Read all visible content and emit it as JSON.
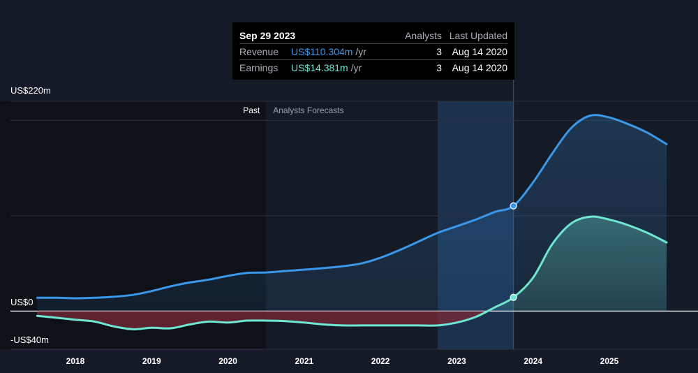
{
  "tooltip": {
    "date": "Sep 29 2023",
    "col_analysts": "Analysts",
    "col_last_updated": "Last Updated",
    "rows": [
      {
        "name": "Revenue",
        "value": "US$110.304m",
        "unit": "/yr",
        "analysts": "3",
        "updated": "Aug 14 2020",
        "color": "#3b97e8"
      },
      {
        "name": "Earnings",
        "value": "US$14.381m",
        "unit": "/yr",
        "analysts": "3",
        "updated": "Aug 14 2020",
        "color": "#6ee7d2"
      }
    ]
  },
  "chart_data": {
    "type": "area",
    "y_labels": [
      "US$220m",
      "US$0",
      "-US$40m"
    ],
    "ylim": [
      -40,
      220
    ],
    "xlim": [
      "2017-07",
      "2025-12"
    ],
    "x_ticks": [
      "2018",
      "2019",
      "2020",
      "2021",
      "2022",
      "2023",
      "2024",
      "2025"
    ],
    "regions": {
      "past_label": "Past",
      "forecast_label": "Analysts Forecasts",
      "past_end": "2020-07"
    },
    "highlight_date": "2023-09-29",
    "colors": {
      "revenue": "#3b97e8",
      "earnings": "#6ee7d2",
      "negative_fill": "#7a2a35"
    },
    "series": [
      {
        "name": "Revenue",
        "points": [
          [
            "2017-07",
            14
          ],
          [
            "2017-10",
            14
          ],
          [
            "2018-01",
            13.5
          ],
          [
            "2018-04",
            14
          ],
          [
            "2018-07",
            15
          ],
          [
            "2018-10",
            17
          ],
          [
            "2019-01",
            21
          ],
          [
            "2019-04",
            26
          ],
          [
            "2019-07",
            30
          ],
          [
            "2019-10",
            33
          ],
          [
            "2020-01",
            37
          ],
          [
            "2020-04",
            40
          ],
          [
            "2020-07",
            40.5
          ],
          [
            "2020-10",
            42
          ],
          [
            "2021-01",
            43.5
          ],
          [
            "2021-04",
            45
          ],
          [
            "2021-07",
            47
          ],
          [
            "2021-10",
            50
          ],
          [
            "2022-01",
            56
          ],
          [
            "2022-04",
            64
          ],
          [
            "2022-07",
            73
          ],
          [
            "2022-10",
            82
          ],
          [
            "2023-01",
            89
          ],
          [
            "2023-04",
            96
          ],
          [
            "2023-07",
            104
          ],
          [
            "2023-09-29",
            110.3
          ],
          [
            "2024-01",
            135
          ],
          [
            "2024-04",
            165
          ],
          [
            "2024-07",
            192
          ],
          [
            "2024-10",
            205
          ],
          [
            "2025-01",
            203
          ],
          [
            "2025-04",
            196
          ],
          [
            "2025-07",
            187
          ],
          [
            "2025-10",
            175
          ]
        ]
      },
      {
        "name": "Earnings",
        "points": [
          [
            "2017-07",
            -5
          ],
          [
            "2017-10",
            -7
          ],
          [
            "2018-01",
            -9
          ],
          [
            "2018-04",
            -11
          ],
          [
            "2018-07",
            -16
          ],
          [
            "2018-10",
            -19
          ],
          [
            "2019-01",
            -17.5
          ],
          [
            "2019-04",
            -18
          ],
          [
            "2019-07",
            -14
          ],
          [
            "2019-10",
            -11
          ],
          [
            "2020-01",
            -12
          ],
          [
            "2020-04",
            -10
          ],
          [
            "2020-07",
            -10
          ],
          [
            "2020-10",
            -10.5
          ],
          [
            "2021-01",
            -12
          ],
          [
            "2021-04",
            -14
          ],
          [
            "2021-07",
            -15
          ],
          [
            "2021-10",
            -15
          ],
          [
            "2022-01",
            -15
          ],
          [
            "2022-04",
            -15
          ],
          [
            "2022-07",
            -15
          ],
          [
            "2022-10",
            -15
          ],
          [
            "2023-01",
            -12
          ],
          [
            "2023-04",
            -6
          ],
          [
            "2023-07",
            4
          ],
          [
            "2023-09-29",
            14.4
          ],
          [
            "2024-01",
            35
          ],
          [
            "2024-04",
            70
          ],
          [
            "2024-07",
            92
          ],
          [
            "2024-10",
            99
          ],
          [
            "2025-01",
            96
          ],
          [
            "2025-04",
            90
          ],
          [
            "2025-07",
            82
          ],
          [
            "2025-10",
            72
          ]
        ]
      }
    ]
  }
}
